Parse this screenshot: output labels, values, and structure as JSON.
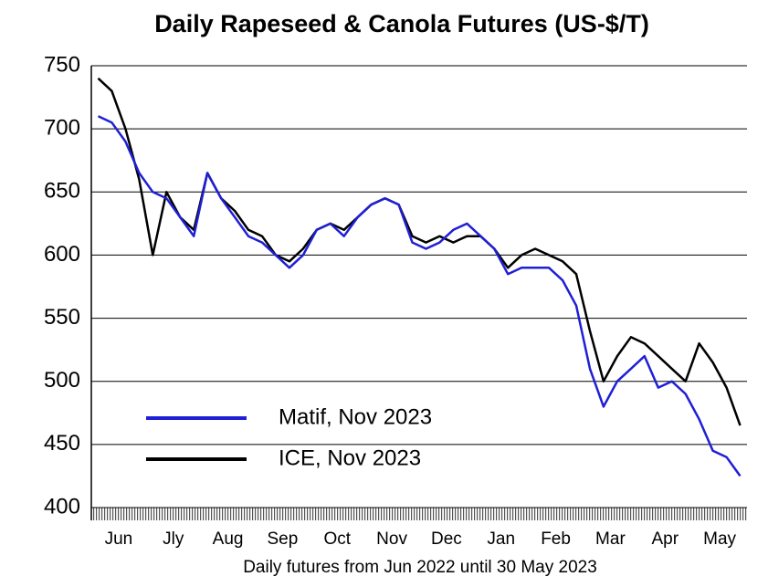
{
  "chart_data": {
    "type": "line",
    "title": "Daily Rapeseed & Canola Futures (US-$/T)",
    "x_label": "Daily futures from Jun 2022 until 30 May 2023",
    "categories": [
      null,
      "Jun",
      null,
      null,
      null,
      "Jly",
      null,
      null,
      null,
      "Aug",
      null,
      null,
      null,
      "Sep",
      null,
      null,
      null,
      "Oct",
      null,
      null,
      null,
      "Nov",
      null,
      null,
      null,
      "Dec",
      null,
      null,
      null,
      "Jan",
      null,
      null,
      null,
      "Feb",
      null,
      null,
      null,
      "Mar",
      null,
      null,
      null,
      "Apr",
      null,
      null,
      null,
      "May",
      null,
      null
    ],
    "series": [
      {
        "name": "Matif, Nov 2023",
        "color": "#1f1fd6",
        "values": [
          710,
          705,
          690,
          665,
          650,
          645,
          630,
          615,
          665,
          645,
          630,
          615,
          610,
          600,
          590,
          600,
          620,
          625,
          615,
          630,
          640,
          645,
          640,
          610,
          605,
          610,
          620,
          625,
          615,
          605,
          585,
          590,
          590,
          590,
          580,
          560,
          510,
          480,
          500,
          510,
          520,
          495,
          500,
          490,
          470,
          445,
          440,
          425
        ]
      },
      {
        "name": "ICE, Nov 2023",
        "color": "#000000",
        "values": [
          740,
          730,
          700,
          660,
          600,
          650,
          630,
          620,
          665,
          645,
          635,
          620,
          615,
          600,
          595,
          605,
          620,
          625,
          620,
          630,
          640,
          645,
          640,
          615,
          610,
          615,
          610,
          615,
          615,
          605,
          590,
          600,
          605,
          600,
          595,
          585,
          540,
          500,
          520,
          535,
          530,
          520,
          510,
          500,
          530,
          515,
          495,
          465
        ]
      }
    ],
    "ylim": [
      400,
      750
    ],
    "yticks": [
      400,
      450,
      500,
      550,
      600,
      650,
      700,
      750
    ],
    "grid": true,
    "legend": "lower left"
  }
}
